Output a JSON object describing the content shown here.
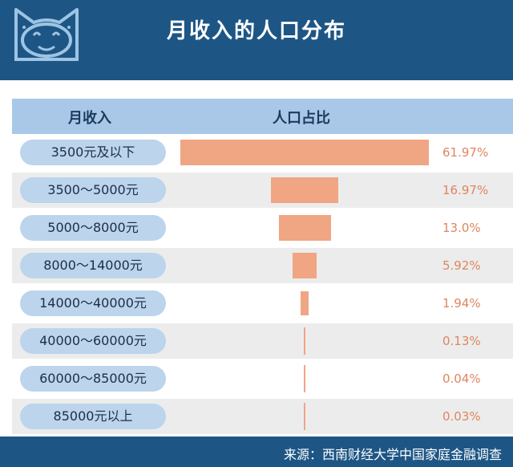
{
  "title": "月收入的人口分布",
  "column_headers": {
    "income": "月收入",
    "share": "人口占比"
  },
  "source": "来源：西南财经大学中国家庭金融调查",
  "colors": {
    "header": "#1d5685",
    "bar": "#f0a583",
    "pill": "#bcd4ec",
    "column_header": "#a9c8e8",
    "percent_text": "#e0855f"
  },
  "chart_data": {
    "type": "bar",
    "orientation": "horizontal",
    "title": "月收入的人口分布",
    "xlabel": "人口占比",
    "ylabel": "月收入",
    "categories": [
      "3500元及以下",
      "3500～5000元",
      "5000～8000元",
      "8000～14000元",
      "14000～40000元",
      "40000～60000元",
      "60000～85000元",
      "85000元以上"
    ],
    "values": [
      61.97,
      16.97,
      13.0,
      5.92,
      1.94,
      0.13,
      0.04,
      0.03
    ],
    "labels": [
      "61.97%",
      "16.97%",
      "13.0%",
      "5.92%",
      "1.94%",
      "0.13%",
      "0.04%",
      "0.03%"
    ],
    "unit": "%"
  }
}
